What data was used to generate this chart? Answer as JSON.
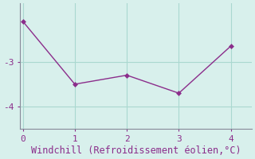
{
  "x": [
    0,
    1,
    2,
    3,
    4
  ],
  "y": [
    -2.1,
    -3.5,
    -3.3,
    -3.7,
    -2.65
  ],
  "line_color": "#8b2d8b",
  "marker": "D",
  "marker_size": 3,
  "bg_color": "#d8f0ec",
  "xlabel": "Windchill (Refroidissement éolien,°C)",
  "xlabel_color": "#8b2d8b",
  "xlabel_fontsize": 8.5,
  "yticks": [
    -4,
    -3
  ],
  "ytick_labels": [
    "-4",
    "-3"
  ],
  "xticks": [
    0,
    1,
    2,
    3,
    4
  ],
  "ylim": [
    -4.5,
    -1.7
  ],
  "xlim": [
    -0.05,
    4.4
  ],
  "tick_color": "#7b6b8b",
  "grid_color": "#aad8d0",
  "spine_color": "#888899",
  "line_width": 1.0,
  "line_style": "-"
}
